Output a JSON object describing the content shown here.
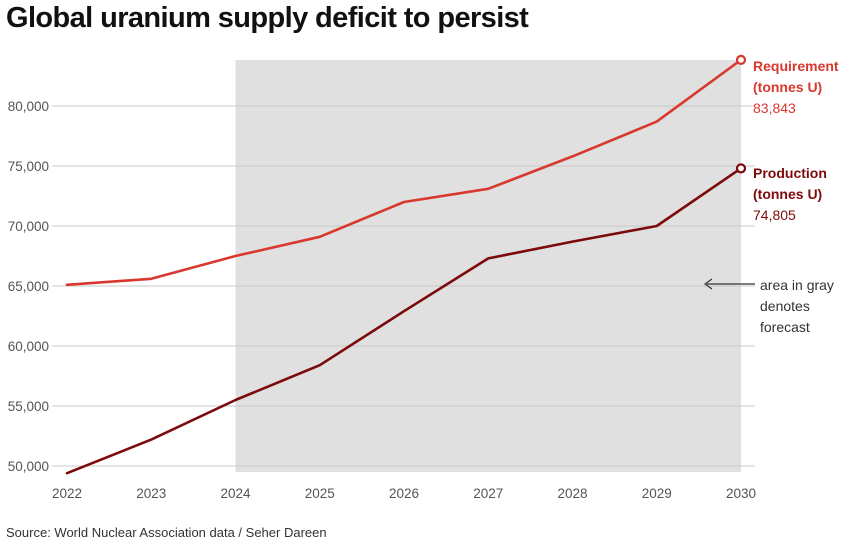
{
  "title": "Global uranium supply deficit to persist",
  "source": "Source: World Nuclear Association data / Seher Dareen",
  "annotation": {
    "lines": [
      "area in gray",
      "denotes",
      "forecast"
    ]
  },
  "colors": {
    "requirement": "#d8382e",
    "production": "#7d0a0a",
    "forecast_band": "#e0e0e0",
    "grid": "#c8c8c8"
  },
  "chart_data": {
    "type": "line",
    "title": "Global uranium supply deficit to persist",
    "xlabel": "",
    "ylabel": "",
    "x": [
      2022,
      2023,
      2024,
      2025,
      2026,
      2027,
      2028,
      2029,
      2030
    ],
    "x_ticks": [
      "2022",
      "2023",
      "2024",
      "2025",
      "2026",
      "2027",
      "2028",
      "2029",
      "2030"
    ],
    "y_ticks": [
      "50,000",
      "55,000",
      "60,000",
      "65,000",
      "70,000",
      "75,000",
      "80,000"
    ],
    "ylim": [
      49500,
      84000
    ],
    "grid": true,
    "forecast_range": [
      2024,
      2030
    ],
    "series": [
      {
        "name": "Requirement",
        "label_lines": [
          "Requirement",
          "(tonnes U)"
        ],
        "end_value_label": "83,843",
        "color": "#d8382e",
        "values": [
          65100,
          65600,
          67500,
          69100,
          72000,
          73100,
          75800,
          78700,
          83843
        ]
      },
      {
        "name": "Production",
        "label_lines": [
          "Production",
          "(tonnes U)"
        ],
        "end_value_label": "74,805",
        "color": "#7d0a0a",
        "values": [
          49400,
          52200,
          55500,
          58400,
          62900,
          67300,
          68700,
          70000,
          74805
        ]
      }
    ]
  }
}
